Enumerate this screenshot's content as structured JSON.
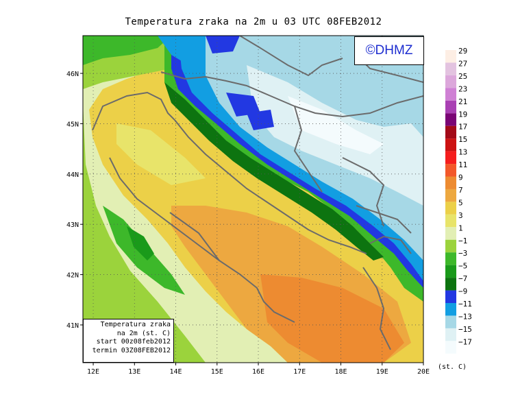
{
  "title": "Temperatura zraka na 2m u 03 UTC 08FEB2012",
  "copyright": "©DHMZ",
  "info_box": [
    "Temperatura zraka",
    "na 2m (st. C)",
    "start 00z08feb2012",
    "termin 03Z08FEB2012"
  ],
  "lat_labels": [
    "46N",
    "45N",
    "44N",
    "43N",
    "42N",
    "41N"
  ],
  "lat_values": [
    46,
    45,
    44,
    43,
    42,
    41
  ],
  "lon_labels": [
    "12E",
    "13E",
    "14E",
    "15E",
    "16E",
    "17E",
    "18E",
    "19E",
    "20E"
  ],
  "lon_values": [
    12,
    13,
    14,
    15,
    16,
    17,
    18,
    19,
    20
  ],
  "legend": {
    "unit": "(st. C)",
    "labels": [
      "29",
      "27",
      "25",
      "23",
      "21",
      "19",
      "17",
      "15",
      "13",
      "11",
      "9",
      "7",
      "5",
      "3",
      "1",
      "−1",
      "−3",
      "−5",
      "−7",
      "−9",
      "−11",
      "−13",
      "−15",
      "−17"
    ],
    "colors": [
      "#fdeee4",
      "#e3c3e0",
      "#dca7db",
      "#cf80d4",
      "#a940b3",
      "#7a0575",
      "#a30a18",
      "#cc1212",
      "#f51e1e",
      "#f3582a",
      "#ed8b31",
      "#eda840",
      "#ecd048",
      "#e8e46a",
      "#e2efb4",
      "#9bd33c",
      "#3db82a",
      "#1a9a1a",
      "#0d7410",
      "#2238e2",
      "#129ee2",
      "#a6d8e6",
      "#dff1f4",
      "#f4fbfd"
    ]
  },
  "map": {
    "lon_range": [
      11.75,
      20.0
    ],
    "lat_range": [
      40.25,
      46.75
    ],
    "grid": "dotted"
  }
}
